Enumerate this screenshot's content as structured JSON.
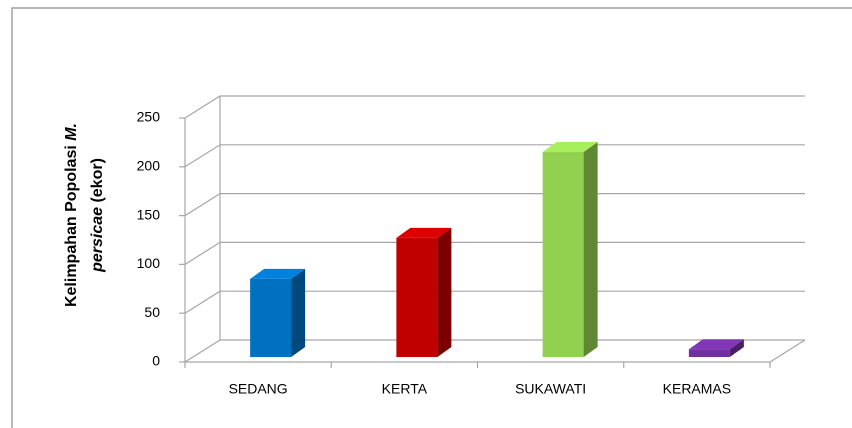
{
  "chart_data": {
    "type": "bar3d",
    "y_label": [
      "Kelimpahan  Popolasi ",
      "M.",
      "persicae",
      " (ekor)"
    ],
    "categories": [
      "SEDANG",
      "KERTA",
      "SUKAWATI",
      "KERAMAS"
    ],
    "values": [
      80,
      122,
      210,
      8
    ],
    "colors": [
      "#0070c0",
      "#c00000",
      "#92d050",
      "#7030a0"
    ],
    "ylim": [
      0,
      250
    ],
    "yticks": [
      0,
      50,
      100,
      150,
      200,
      250
    ],
    "grid": true
  }
}
